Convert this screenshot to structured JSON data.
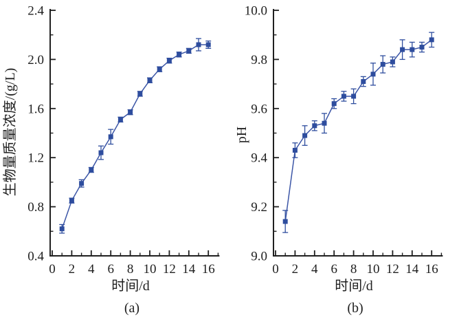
{
  "figure": {
    "background": "#ffffff",
    "description_note": "two-panel line chart with square markers and error bars"
  },
  "chart_data": [
    {
      "type": "line",
      "panel": "a",
      "caption": "(a)",
      "xlabel": "时间/d",
      "ylabel": "生物量质量浓度/(g/L)",
      "x": [
        1,
        2,
        3,
        4,
        5,
        6,
        7,
        8,
        9,
        10,
        11,
        12,
        13,
        14,
        15,
        16
      ],
      "y": [
        0.62,
        0.85,
        0.99,
        1.1,
        1.24,
        1.37,
        1.51,
        1.57,
        1.72,
        1.83,
        1.92,
        1.99,
        2.04,
        2.07,
        2.12,
        2.12
      ],
      "yerr": [
        0.035,
        0.02,
        0.03,
        0.02,
        0.055,
        0.06,
        0.02,
        0.02,
        0.02,
        0.02,
        0.02,
        0.02,
        0.02,
        0.02,
        0.05,
        0.03
      ],
      "xlim": [
        0,
        17
      ],
      "ylim": [
        0.4,
        2.4
      ],
      "xtick_values": [
        0,
        2,
        4,
        6,
        8,
        10,
        12,
        14,
        16
      ],
      "xtick_labels": [
        "0",
        "2",
        "4",
        "6",
        "8",
        "10",
        "12",
        "14",
        "16"
      ],
      "xtick_minor_values": [
        1,
        3,
        5,
        7,
        9,
        11,
        13,
        15,
        17
      ],
      "ytick_values": [
        0.4,
        0.8,
        1.2,
        1.6,
        2.0,
        2.4
      ],
      "ytick_labels": [
        "0.4",
        "0.8",
        "1.2",
        "1.6",
        "2.0",
        "2.4"
      ],
      "ytick_minor_values": [
        0.6,
        1.0,
        1.4,
        1.8,
        2.2
      ],
      "grid": false,
      "legend": null,
      "marker": "square",
      "series_color": "#2e4d9e",
      "line_color": "#3b55a6",
      "axis_color": "#1f1f1f"
    },
    {
      "type": "line",
      "panel": "b",
      "caption": "(b)",
      "xlabel": "时间/d",
      "ylabel": "pH",
      "x": [
        1,
        2,
        3,
        4,
        5,
        6,
        7,
        8,
        9,
        10,
        11,
        12,
        13,
        14,
        15,
        16
      ],
      "y": [
        9.14,
        9.43,
        9.49,
        9.53,
        9.54,
        9.62,
        9.65,
        9.65,
        9.71,
        9.74,
        9.78,
        9.79,
        9.84,
        9.84,
        9.85,
        9.88
      ],
      "yerr": [
        0.045,
        0.03,
        0.04,
        0.02,
        0.04,
        0.02,
        0.02,
        0.03,
        0.02,
        0.045,
        0.035,
        0.02,
        0.04,
        0.03,
        0.02,
        0.03
      ],
      "xlim": [
        0,
        17
      ],
      "ylim": [
        9.0,
        10.0
      ],
      "xtick_values": [
        0,
        2,
        4,
        6,
        8,
        10,
        12,
        14,
        16
      ],
      "xtick_labels": [
        "0",
        "2",
        "4",
        "6",
        "8",
        "10",
        "12",
        "14",
        "16"
      ],
      "xtick_minor_values": [
        1,
        3,
        5,
        7,
        9,
        11,
        13,
        15,
        17
      ],
      "ytick_values": [
        9.0,
        9.2,
        9.4,
        9.6,
        9.8,
        10.0
      ],
      "ytick_labels": [
        "9.0",
        "9.2",
        "9.4",
        "9.6",
        "9.8",
        "10.0"
      ],
      "ytick_minor_values": [
        9.1,
        9.3,
        9.5,
        9.7,
        9.9
      ],
      "grid": false,
      "legend": null,
      "marker": "square",
      "series_color": "#2e4d9e",
      "line_color": "#3b55a6",
      "axis_color": "#1f1f1f"
    }
  ]
}
